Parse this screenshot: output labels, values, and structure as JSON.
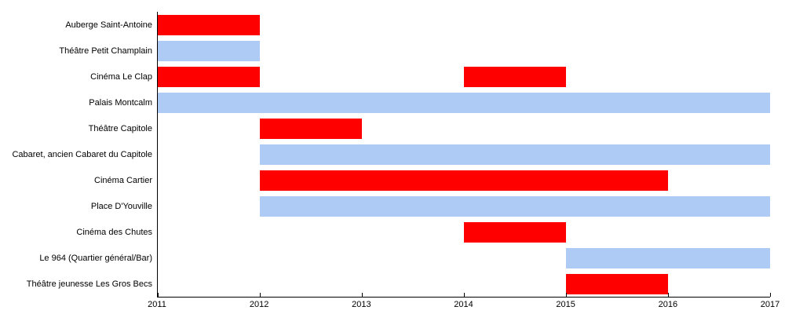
{
  "chart_data": {
    "type": "bar",
    "variant": "horizontal-gantt-timeline",
    "title": "",
    "xlabel": "",
    "ylabel": "",
    "xlim": [
      2011,
      2017
    ],
    "x_ticks": [
      "2011",
      "2012",
      "2013",
      "2014",
      "2015",
      "2016",
      "2017"
    ],
    "grid": false,
    "legend": "none",
    "colors": {
      "red": "#ff0000",
      "blue": "#aecbf5"
    },
    "rows": [
      {
        "label": "Auberge Saint-Antoine",
        "bars": [
          {
            "start": 2011,
            "end": 2012,
            "color": "red"
          }
        ]
      },
      {
        "label": "Théâtre Petit Champlain",
        "bars": [
          {
            "start": 2011,
            "end": 2012,
            "color": "blue"
          }
        ]
      },
      {
        "label": "Cinéma Le Clap",
        "bars": [
          {
            "start": 2011,
            "end": 2012,
            "color": "red"
          },
          {
            "start": 2014,
            "end": 2015,
            "color": "red"
          }
        ]
      },
      {
        "label": "Palais Montcalm",
        "bars": [
          {
            "start": 2011,
            "end": 2017,
            "color": "blue"
          }
        ]
      },
      {
        "label": "Théâtre Capitole",
        "bars": [
          {
            "start": 2012,
            "end": 2013,
            "color": "red"
          }
        ]
      },
      {
        "label": "Cabaret, ancien Cabaret du Capitole",
        "bars": [
          {
            "start": 2012,
            "end": 2017,
            "color": "blue"
          }
        ]
      },
      {
        "label": "Cinéma Cartier",
        "bars": [
          {
            "start": 2012,
            "end": 2016,
            "color": "red"
          }
        ]
      },
      {
        "label": "Place D'Youville",
        "bars": [
          {
            "start": 2012,
            "end": 2017,
            "color": "blue"
          }
        ]
      },
      {
        "label": "Cinéma des Chutes",
        "bars": [
          {
            "start": 2014,
            "end": 2015,
            "color": "red"
          }
        ]
      },
      {
        "label": "Le 964 (Quartier général/Bar)",
        "bars": [
          {
            "start": 2015,
            "end": 2017,
            "color": "blue"
          }
        ]
      },
      {
        "label": "Théâtre jeunesse Les Gros Becs",
        "bars": [
          {
            "start": 2015,
            "end": 2016,
            "color": "red"
          }
        ]
      }
    ]
  }
}
